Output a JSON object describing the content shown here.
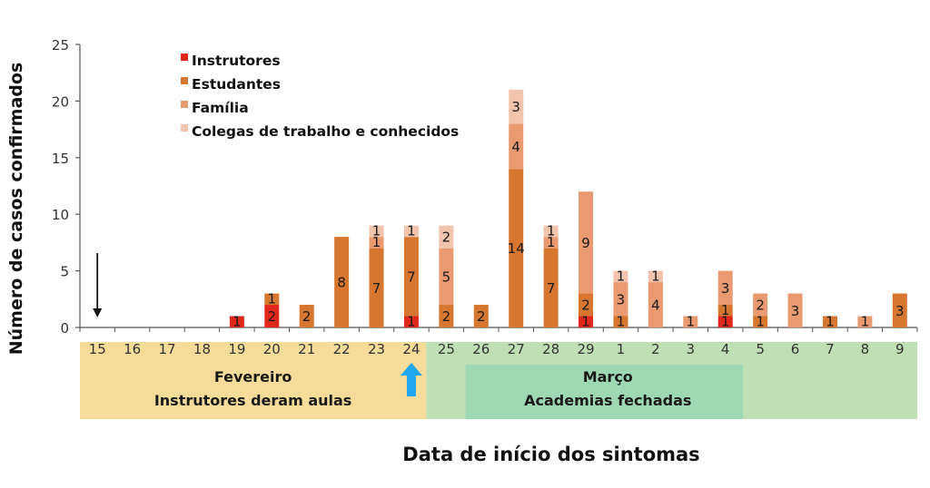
{
  "chart_data": {
    "type": "bar",
    "stacked": true,
    "ylabel": "Número de casos confirmados",
    "xlabel": "Data de início dos sintomas",
    "ylim": [
      0,
      25
    ],
    "yticks": [
      0,
      5,
      10,
      15,
      20,
      25
    ],
    "categories": [
      "15",
      "16",
      "17",
      "18",
      "19",
      "20",
      "21",
      "22",
      "23",
      "24",
      "25",
      "26",
      "27",
      "28",
      "29",
      "1",
      "2",
      "3",
      "4",
      "5",
      "6",
      "7",
      "8",
      "9"
    ],
    "series": [
      {
        "name": "Instrutores",
        "color": "#e0271c",
        "values": [
          0,
          0,
          0,
          0,
          1,
          2,
          0,
          0,
          0,
          1,
          0,
          0,
          0,
          0,
          1,
          0,
          0,
          0,
          1,
          0,
          0,
          0,
          0,
          0
        ]
      },
      {
        "name": "Estudantes",
        "color": "#d7772f",
        "values": [
          0,
          0,
          0,
          0,
          0,
          1,
          2,
          8,
          7,
          7,
          2,
          2,
          14,
          7,
          2,
          1,
          0,
          0,
          1,
          1,
          0,
          1,
          0,
          3
        ]
      },
      {
        "name": "Família",
        "color": "#e99a71",
        "values": [
          0,
          0,
          0,
          0,
          0,
          0,
          0,
          0,
          1,
          0,
          5,
          0,
          4,
          1,
          9,
          3,
          4,
          1,
          3,
          2,
          3,
          0,
          1,
          0
        ]
      },
      {
        "name": "Colegas de trabalho e conhecidos",
        "color": "#f2c3ad",
        "values": [
          0,
          0,
          0,
          0,
          0,
          0,
          0,
          0,
          1,
          1,
          2,
          0,
          3,
          1,
          0,
          1,
          1,
          0,
          0,
          0,
          0,
          0,
          0,
          0
        ]
      }
    ],
    "legend_placement": "top-left",
    "grid": false,
    "months": [
      {
        "label": "Fevereiro",
        "note": "Instrutores deram aulas",
        "color": "#f5dc9a"
      },
      {
        "label": "Março",
        "note": "Academias fechadas",
        "color": "#9fd8b4"
      }
    ],
    "shaded_region_color": "#bfe0b4",
    "markers": [
      {
        "type": "arrow-down",
        "category": "15",
        "color": "#111111"
      },
      {
        "type": "arrow-up",
        "category": "24",
        "color": "#1ea7f0"
      }
    ]
  }
}
